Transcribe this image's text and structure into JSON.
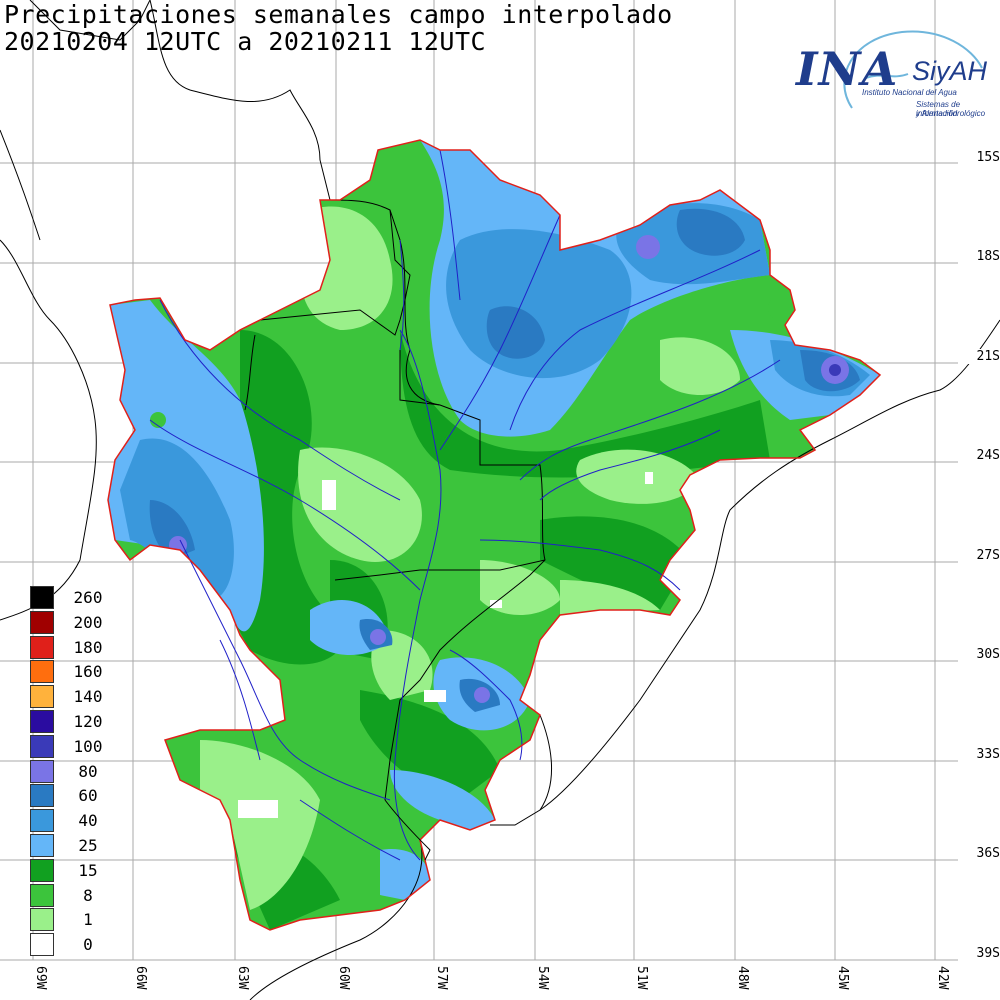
{
  "title": {
    "line1": "Precipitaciones semanales campo interpolado",
    "line2": "20210204 12UTC a 20210211 12UTC"
  },
  "logo": {
    "main": "INA",
    "secondary": "SiyAH",
    "subtitle1": "Instituto Nacional del Agua",
    "subtitle2": "Sistemas de información",
    "subtitle3": "y Alerta Hidrológico"
  },
  "lat_labels": [
    "15S",
    "18S",
    "21S",
    "24S",
    "27S",
    "30S",
    "33S",
    "36S",
    "39S"
  ],
  "lon_labels": [
    "69W",
    "66W",
    "63W",
    "60W",
    "57W",
    "54W",
    "51W",
    "48W",
    "45W",
    "42W"
  ],
  "legend": {
    "unit": "",
    "items": [
      {
        "value": "260",
        "color": "#000000"
      },
      {
        "value": "200",
        "color": "#a00000"
      },
      {
        "value": "180",
        "color": "#e0201a"
      },
      {
        "value": "160",
        "color": "#ff6e0e"
      },
      {
        "value": "140",
        "color": "#ffb23c"
      },
      {
        "value": "120",
        "color": "#2a0ca0"
      },
      {
        "value": "100",
        "color": "#3a3ab8"
      },
      {
        "value": "80",
        "color": "#7a74e6"
      },
      {
        "value": "60",
        "color": "#2a7ac2"
      },
      {
        "value": "40",
        "color": "#3a98dc"
      },
      {
        "value": "25",
        "color": "#64b6f8"
      },
      {
        "value": "15",
        "color": "#11a020"
      },
      {
        "value": "8",
        "color": "#3cc43c"
      },
      {
        "value": "1",
        "color": "#9af08a"
      },
      {
        "value": "0",
        "color": "#ffffff"
      }
    ]
  },
  "colors": {
    "basin_outline": "#e0201a",
    "rivers": "#2020c8",
    "borders": "#000000",
    "grid": "#aaaaaa"
  }
}
